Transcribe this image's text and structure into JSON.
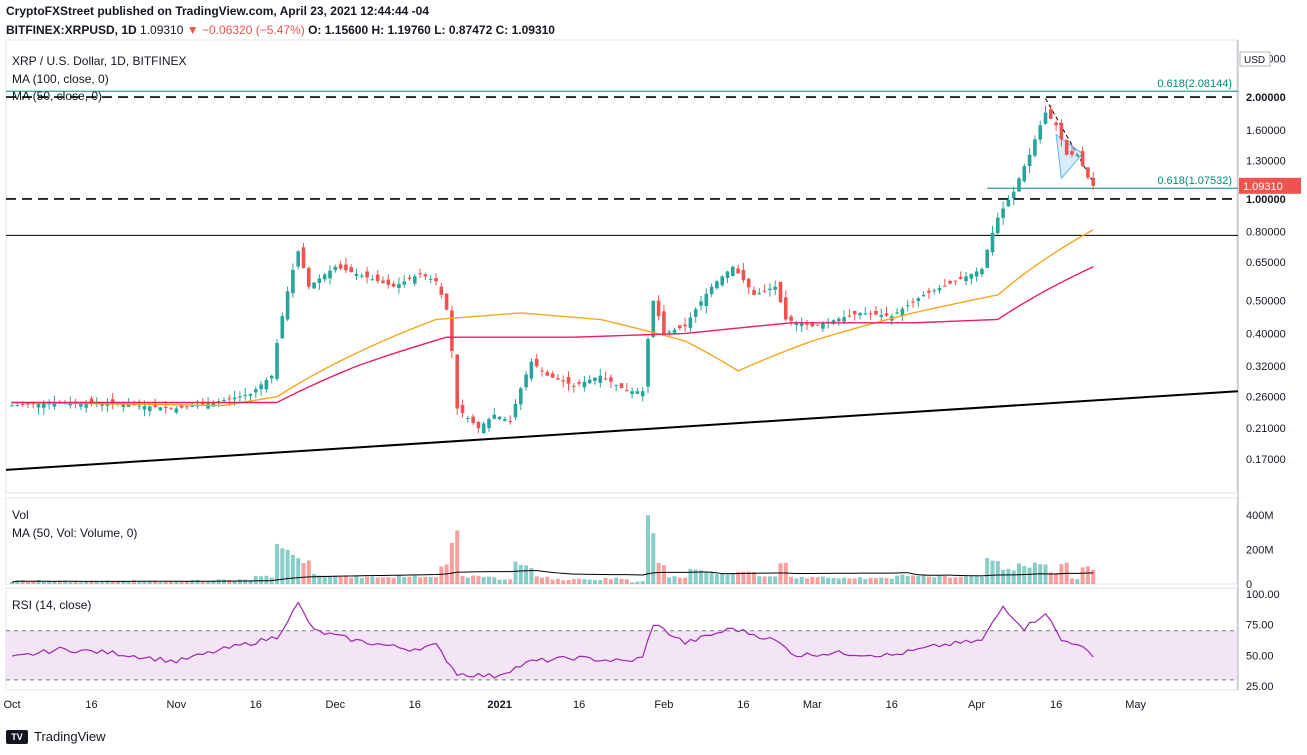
{
  "header": {
    "line1": "CryptoFXStreet published on TradingView.com, April 23, 2021 12:44:44 -04",
    "symbol": "BITFINEX:XRPUSD, 1D",
    "last": "1.09310",
    "change": "−0.06320 (−5.47%)",
    "open": "O: 1.15600",
    "high": "H: 1.19760",
    "low": "L: 0.87472",
    "close": "C: 1.09310"
  },
  "legend": {
    "title": "XRP / U.S. Dollar, 1D, BITFINEX",
    "ma100": "MA (100, close, 0)",
    "ma50": "MA (50, close, 0)",
    "vol": "Vol",
    "vol_ma": "MA (50, Vol: Volume, 0)",
    "rsi": "RSI (14, close)"
  },
  "brand": {
    "name": "TradingView",
    "logo_text": "TV"
  },
  "colors": {
    "up": "#26a69a",
    "down": "#ef5350",
    "ma50": "#f5a623",
    "ma100": "#e91e63",
    "rsi_line": "#9c27b0",
    "rsi_band": "#f3e5f5",
    "fib": "#00897b",
    "trend": "#000000"
  },
  "chart_data": [
    {
      "type": "candlestick",
      "title": "XRP / U.S. Dollar, 1D, BITFINEX",
      "yscale": "log",
      "ylim": [
        0.135,
        2.95
      ],
      "yunit": "USD",
      "x_ticks": [
        "Oct",
        "16",
        "Nov",
        "16",
        "Dec",
        "16",
        "2021",
        "16",
        "Feb",
        "16",
        "Mar",
        "16",
        "Apr",
        "16",
        "May"
      ],
      "y_ticks": [
        "2.60000",
        "2.00000",
        "1.60000",
        "1.30000",
        "1.00000",
        "0.80000",
        "0.65000",
        "0.50000",
        "0.40000",
        "0.32000",
        "0.26000",
        "0.21000",
        "0.17000"
      ],
      "price_label": "1.09310",
      "anchors": [
        [
          "2020-10-01",
          0.245
        ],
        [
          "2020-10-10",
          0.25
        ],
        [
          "2020-10-20",
          0.248
        ],
        [
          "2020-11-01",
          0.24
        ],
        [
          "2020-11-08",
          0.25
        ],
        [
          "2020-11-15",
          0.265
        ],
        [
          "2020-11-19",
          0.3
        ],
        [
          "2020-11-21",
          0.45
        ],
        [
          "2020-11-24",
          0.7
        ],
        [
          "2020-11-26",
          0.55
        ],
        [
          "2020-12-01",
          0.63
        ],
        [
          "2020-12-05",
          0.6
        ],
        [
          "2020-12-12",
          0.55
        ],
        [
          "2020-12-17",
          0.6
        ],
        [
          "2020-12-20",
          0.57
        ],
        [
          "2020-12-22",
          0.47
        ],
        [
          "2020-12-24",
          0.24
        ],
        [
          "2020-12-28",
          0.21
        ],
        [
          "2020-12-31",
          0.23
        ],
        [
          "2021-01-03",
          0.22
        ],
        [
          "2021-01-07",
          0.33
        ],
        [
          "2021-01-10",
          0.3
        ],
        [
          "2021-01-15",
          0.28
        ],
        [
          "2021-01-20",
          0.3
        ],
        [
          "2021-01-25",
          0.27
        ],
        [
          "2021-01-28",
          0.27
        ],
        [
          "2021-01-30",
          0.5
        ],
        [
          "2021-02-01",
          0.4
        ],
        [
          "2021-02-05",
          0.42
        ],
        [
          "2021-02-10",
          0.55
        ],
        [
          "2021-02-14",
          0.63
        ],
        [
          "2021-02-18",
          0.52
        ],
        [
          "2021-02-22",
          0.55
        ],
        [
          "2021-02-24",
          0.44
        ],
        [
          "2021-03-01",
          0.42
        ],
        [
          "2021-03-10",
          0.46
        ],
        [
          "2021-03-16",
          0.45
        ],
        [
          "2021-03-22",
          0.52
        ],
        [
          "2021-03-28",
          0.57
        ],
        [
          "2021-04-02",
          0.62
        ],
        [
          "2021-04-05",
          0.88
        ],
        [
          "2021-04-08",
          1.05
        ],
        [
          "2021-04-11",
          1.35
        ],
        [
          "2021-04-14",
          1.8
        ],
        [
          "2021-04-16",
          1.65
        ],
        [
          "2021-04-18",
          1.35
        ],
        [
          "2021-04-20",
          1.35
        ],
        [
          "2021-04-22",
          1.156
        ],
        [
          "2021-04-23",
          1.0931
        ]
      ],
      "ma50": [
        [
          "2020-10-01",
          0.25
        ],
        [
          "2020-11-10",
          0.245
        ],
        [
          "2020-11-20",
          0.26
        ],
        [
          "2020-12-05",
          0.35
        ],
        [
          "2020-12-20",
          0.44
        ],
        [
          "2021-01-05",
          0.46
        ],
        [
          "2021-01-20",
          0.44
        ],
        [
          "2021-02-05",
          0.38
        ],
        [
          "2021-02-15",
          0.31
        ],
        [
          "2021-03-01",
          0.38
        ],
        [
          "2021-03-20",
          0.46
        ],
        [
          "2021-04-05",
          0.52
        ],
        [
          "2021-04-23",
          0.81
        ]
      ],
      "ma100": [
        [
          "2020-10-01",
          0.25
        ],
        [
          "2020-11-20",
          0.25
        ],
        [
          "2020-12-05",
          0.32
        ],
        [
          "2020-12-22",
          0.39
        ],
        [
          "2021-01-15",
          0.39
        ],
        [
          "2021-02-05",
          0.4
        ],
        [
          "2021-02-25",
          0.43
        ],
        [
          "2021-03-20",
          0.43
        ],
        [
          "2021-04-05",
          0.44
        ],
        [
          "2021-04-23",
          0.63
        ]
      ],
      "levels": [
        {
          "label": "0.618(2.08144)",
          "value": 2.08144
        },
        {
          "label": "",
          "value": 2.0
        },
        {
          "label": "",
          "value": 1.0
        },
        {
          "label": "0.618(1.07532)",
          "value": 1.07532
        },
        {
          "label": "",
          "value": 0.78
        }
      ],
      "trendline": [
        [
          "2020-10-01",
          0.158
        ],
        [
          "2021-05-01",
          0.27
        ]
      ]
    },
    {
      "type": "bar",
      "title": "Vol",
      "y_ticks": [
        "400M",
        "200M",
        "0"
      ],
      "ylim": [
        0,
        500
      ],
      "unit": "M"
    },
    {
      "type": "line",
      "title": "RSI (14, close)",
      "y_ticks": [
        "100.00",
        "75.00",
        "50.00",
        "25.00"
      ],
      "ylim": [
        25,
        100
      ],
      "band": [
        30,
        70
      ],
      "anchors": [
        [
          "2020-10-01",
          48
        ],
        [
          "2020-10-10",
          55
        ],
        [
          "2020-10-20",
          52
        ],
        [
          "2020-11-01",
          45
        ],
        [
          "2020-11-10",
          55
        ],
        [
          "2020-11-20",
          65
        ],
        [
          "2020-11-24",
          92
        ],
        [
          "2020-11-27",
          70
        ],
        [
          "2020-12-05",
          62
        ],
        [
          "2020-12-15",
          55
        ],
        [
          "2020-12-20",
          58
        ],
        [
          "2020-12-24",
          35
        ],
        [
          "2020-12-31",
          33
        ],
        [
          "2021-01-07",
          45
        ],
        [
          "2021-01-15",
          48
        ],
        [
          "2021-01-25",
          45
        ],
        [
          "2021-01-28",
          48
        ],
        [
          "2021-01-30",
          76
        ],
        [
          "2021-02-05",
          60
        ],
        [
          "2021-02-14",
          72
        ],
        [
          "2021-02-22",
          62
        ],
        [
          "2021-02-26",
          50
        ],
        [
          "2021-03-05",
          52
        ],
        [
          "2021-03-16",
          50
        ],
        [
          "2021-03-25",
          58
        ],
        [
          "2021-04-02",
          62
        ],
        [
          "2021-04-06",
          90
        ],
        [
          "2021-04-10",
          72
        ],
        [
          "2021-04-14",
          85
        ],
        [
          "2021-04-17",
          62
        ],
        [
          "2021-04-20",
          60
        ],
        [
          "2021-04-23",
          48
        ]
      ]
    }
  ]
}
